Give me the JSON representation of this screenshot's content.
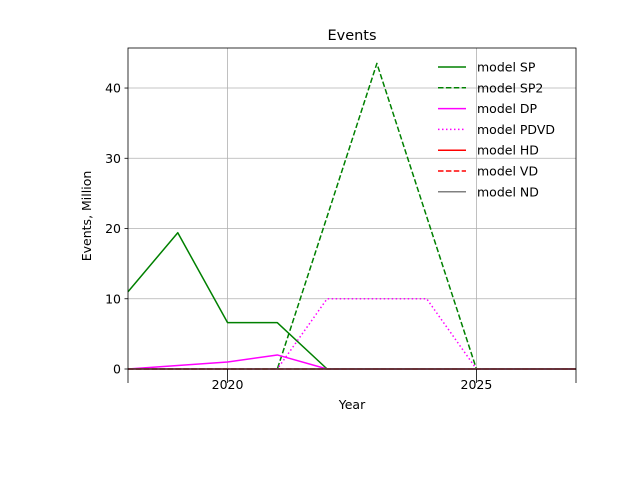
{
  "chart_data": {
    "type": "line",
    "title": "Events",
    "xlabel": "Year",
    "ylabel": "Events, Million",
    "xlim": [
      2018,
      2027
    ],
    "ylim": [
      0,
      45.7
    ],
    "xticks": [
      2020,
      2025
    ],
    "yticks": [
      0,
      10,
      20,
      30,
      40
    ],
    "grid": true,
    "legend_position": "top-right",
    "x": [
      2018,
      2019,
      2020,
      2021,
      2022,
      2023,
      2024,
      2025,
      2026,
      2027
    ],
    "series": [
      {
        "name": "model SP",
        "color": "#008000",
        "style": "solid",
        "values": [
          11,
          19.4,
          6.6,
          6.6,
          0,
          0,
          0,
          0,
          0,
          0
        ]
      },
      {
        "name": "model SP2",
        "color": "#008000",
        "style": "dashed",
        "values": [
          0,
          0,
          0,
          0,
          21.7,
          43.5,
          21.7,
          0,
          0,
          0
        ]
      },
      {
        "name": "model DP",
        "color": "#ff00ff",
        "style": "solid",
        "values": [
          0,
          0.5,
          1,
          2,
          0,
          0,
          0,
          0,
          0,
          0
        ]
      },
      {
        "name": "model PDVD",
        "color": "#ff00ff",
        "style": "dotted",
        "values": [
          0,
          0,
          0,
          0,
          10,
          10,
          10,
          0,
          0,
          0
        ]
      },
      {
        "name": "model HD",
        "color": "#ff0000",
        "style": "solid",
        "values": [
          0,
          0,
          0,
          0,
          0,
          0,
          0,
          0,
          0,
          0
        ]
      },
      {
        "name": "model VD",
        "color": "#ff0000",
        "style": "dashed",
        "values": [
          0,
          0,
          0,
          0,
          0,
          0,
          0,
          0,
          0,
          0
        ]
      },
      {
        "name": "model ND",
        "color": "#808080",
        "style": "solid",
        "values": [
          0,
          0,
          0,
          0,
          0,
          0,
          0,
          0,
          0,
          0
        ]
      }
    ]
  }
}
